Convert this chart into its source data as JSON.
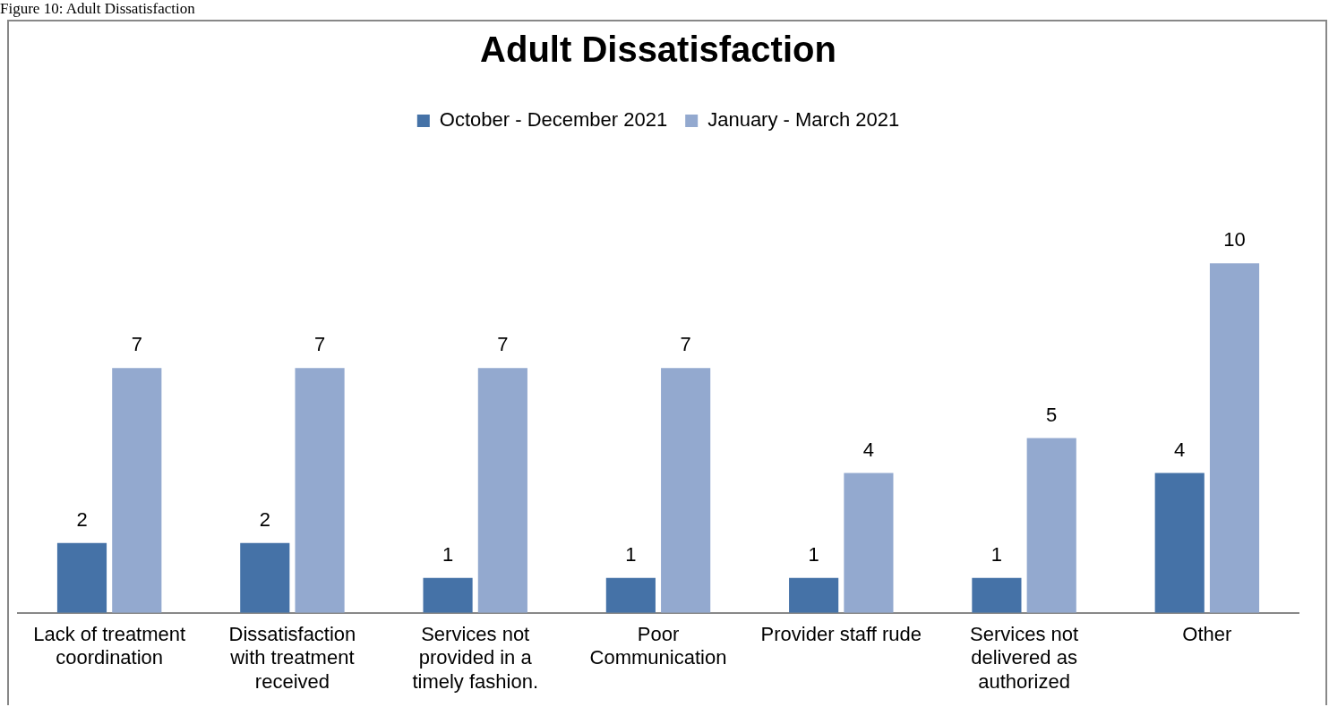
{
  "chart_data": {
    "type": "bar",
    "title": "Adult Dissatisfaction",
    "annotations": [
      "Figure 10: Adult Dissatisfaction"
    ],
    "categories": [
      "Lack of treatment coordination",
      "Dissatisfaction with treatment received",
      "Services not provided in a timely fashion.",
      "Poor Communication",
      "Provider staff rude",
      "Services not delivered as authorized",
      "Other"
    ],
    "series": [
      {
        "name": "October - December 2021",
        "color": "#4572a7",
        "values": [
          2,
          2,
          1,
          1,
          1,
          1,
          4
        ]
      },
      {
        "name": "January - March 2021",
        "color": "#93a9cf",
        "values": [
          7,
          7,
          7,
          7,
          4,
          5,
          10
        ]
      }
    ],
    "data_labels": true,
    "legend": "top",
    "grid": false,
    "tick_labels": "x"
  }
}
